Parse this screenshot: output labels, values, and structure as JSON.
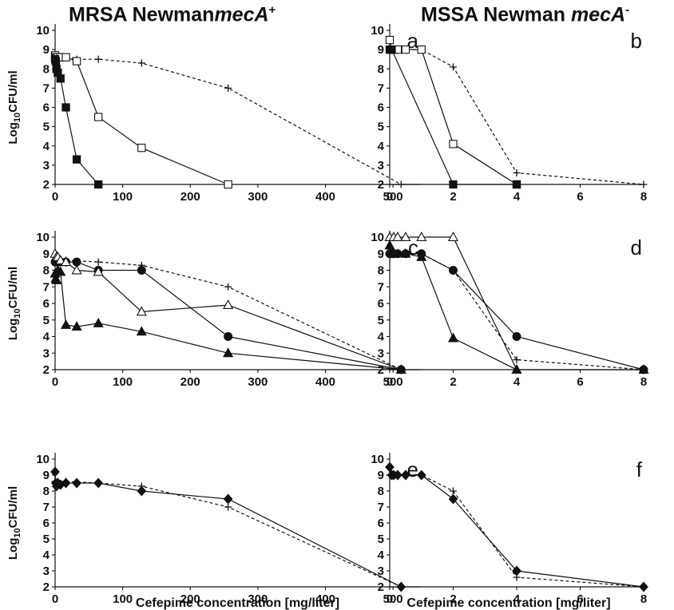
{
  "column_titles": [
    {
      "prefix": "MRSA Newman",
      "gene": "mecA",
      "sup": "+"
    },
    {
      "prefix": "MSSA Newman ",
      "gene": "mecA",
      "sup": "-"
    }
  ],
  "ylabel_main": "Log",
  "ylabel_sub": "10",
  "ylabel_tail": "CFU/ml",
  "xlabel": "Cefepime concentration [mg/liter]",
  "chart_data": [
    {
      "panel": "a",
      "type": "line",
      "xlim": [
        0,
        540
      ],
      "ylim": [
        2,
        10
      ],
      "xticks": [
        0,
        100,
        200,
        300,
        400,
        500
      ],
      "yticks": [
        2,
        3,
        4,
        5,
        6,
        7,
        8,
        9,
        10
      ],
      "series": [
        {
          "marker": "plus",
          "dashed": true,
          "x": [
            0,
            2,
            4,
            8,
            16,
            32,
            64,
            128,
            256,
            512
          ],
          "y": [
            8.6,
            8.6,
            8.6,
            8.6,
            8.6,
            8.5,
            8.5,
            8.3,
            7.0,
            2.0
          ]
        },
        {
          "marker": "square-open",
          "dashed": false,
          "x": [
            0,
            1,
            2,
            4,
            8,
            16,
            32,
            64,
            128,
            256
          ],
          "y": [
            8.7,
            8.6,
            8.6,
            8.6,
            8.6,
            8.6,
            8.4,
            5.5,
            3.9,
            2.0
          ]
        },
        {
          "marker": "square-filled",
          "dashed": false,
          "x": [
            0,
            1,
            2,
            4,
            8,
            16,
            32,
            64
          ],
          "y": [
            8.5,
            8.4,
            8.0,
            7.8,
            7.5,
            6.0,
            3.3,
            2.0
          ]
        }
      ]
    },
    {
      "panel": "b",
      "type": "line",
      "xlim": [
        0,
        8
      ],
      "ylim": [
        2,
        10
      ],
      "xticks": [
        0,
        2,
        4,
        6,
        8
      ],
      "yticks": [
        2,
        3,
        4,
        5,
        6,
        7,
        8,
        9,
        10
      ],
      "series": [
        {
          "marker": "plus",
          "dashed": true,
          "x": [
            0,
            0.125,
            0.25,
            0.5,
            1,
            2,
            4,
            8
          ],
          "y": [
            9.0,
            9.0,
            9.0,
            9.0,
            9.0,
            8.1,
            2.6,
            2.0
          ]
        },
        {
          "marker": "square-open",
          "dashed": false,
          "x": [
            0,
            0.0625,
            0.125,
            0.25,
            0.5,
            1,
            2,
            4
          ],
          "y": [
            9.5,
            9.0,
            9.0,
            9.0,
            9.0,
            9.0,
            4.1,
            2.0
          ]
        },
        {
          "marker": "square-filled",
          "dashed": false,
          "x": [
            0,
            0.0625,
            2,
            4
          ],
          "y": [
            9.0,
            9.0,
            2.0,
            2.0
          ]
        }
      ]
    },
    {
      "panel": "c",
      "type": "line",
      "xlim": [
        0,
        540
      ],
      "ylim": [
        2,
        10
      ],
      "xticks": [
        0,
        100,
        200,
        300,
        400,
        500
      ],
      "yticks": [
        2,
        3,
        4,
        5,
        6,
        7,
        8,
        9,
        10
      ],
      "series": [
        {
          "marker": "plus",
          "dashed": true,
          "x": [
            0,
            4,
            16,
            64,
            128,
            256,
            512
          ],
          "y": [
            8.6,
            8.6,
            8.6,
            8.5,
            8.3,
            7.0,
            2.0
          ]
        },
        {
          "marker": "circle-filled",
          "dashed": false,
          "x": [
            0,
            1,
            2,
            4,
            8,
            16,
            32,
            64,
            128,
            256,
            512
          ],
          "y": [
            8.5,
            8.5,
            8.6,
            8.5,
            8.5,
            8.5,
            8.5,
            8.0,
            8.0,
            4.0,
            2.0
          ]
        },
        {
          "marker": "triangle-open",
          "dashed": false,
          "x": [
            0,
            2,
            4,
            8,
            16,
            32,
            64,
            128,
            256,
            512
          ],
          "y": [
            9.0,
            8.8,
            8.8,
            8.6,
            8.5,
            8.0,
            7.9,
            5.5,
            5.9,
            2.0
          ]
        },
        {
          "marker": "triangle-filled",
          "dashed": false,
          "x": [
            0,
            1,
            2,
            4,
            8,
            16,
            32,
            64,
            128,
            256,
            512
          ],
          "y": [
            7.8,
            7.5,
            7.4,
            8.0,
            7.9,
            4.7,
            4.6,
            4.8,
            4.3,
            3.0,
            2.0
          ]
        }
      ]
    },
    {
      "panel": "d",
      "type": "line",
      "xlim": [
        0,
        8
      ],
      "ylim": [
        2,
        10
      ],
      "xticks": [
        0,
        2,
        4,
        6,
        8
      ],
      "yticks": [
        2,
        3,
        4,
        5,
        6,
        7,
        8,
        9,
        10
      ],
      "series": [
        {
          "marker": "plus",
          "dashed": true,
          "x": [
            0,
            0.5,
            1,
            2,
            4,
            8
          ],
          "y": [
            9.0,
            9.0,
            9.0,
            8.0,
            2.6,
            2.0
          ]
        },
        {
          "marker": "circle-filled",
          "dashed": false,
          "x": [
            0,
            0.0625,
            0.125,
            0.25,
            0.5,
            1,
            2,
            4,
            8
          ],
          "y": [
            9.0,
            9.0,
            9.0,
            9.0,
            9.0,
            9.0,
            8.0,
            4.0,
            2.0
          ]
        },
        {
          "marker": "triangle-open",
          "dashed": false,
          "x": [
            0,
            0.125,
            0.25,
            0.5,
            1,
            2,
            4
          ],
          "y": [
            10.0,
            10.0,
            10.0,
            10.0,
            10.0,
            10.0,
            2.0
          ]
        },
        {
          "marker": "triangle-filled",
          "dashed": false,
          "x": [
            0,
            0.0625,
            0.5,
            1,
            2,
            4,
            8
          ],
          "y": [
            9.5,
            9.2,
            9.0,
            8.8,
            3.9,
            2.0,
            2.0
          ]
        }
      ]
    },
    {
      "panel": "e",
      "type": "line",
      "xlim": [
        0,
        540
      ],
      "ylim": [
        2,
        10
      ],
      "xticks": [
        0,
        100,
        200,
        300,
        400,
        500
      ],
      "yticks": [
        2,
        3,
        4,
        5,
        6,
        7,
        8,
        9,
        10
      ],
      "series": [
        {
          "marker": "plus",
          "dashed": true,
          "x": [
            0,
            4,
            16,
            64,
            128,
            256,
            512
          ],
          "y": [
            8.6,
            8.6,
            8.6,
            8.5,
            8.3,
            7.0,
            2.0
          ]
        },
        {
          "marker": "diamond-filled",
          "dashed": false,
          "x": [
            0,
            1,
            2,
            4,
            8,
            16,
            32,
            64,
            128,
            256,
            512
          ],
          "y": [
            9.2,
            8.5,
            8.3,
            8.5,
            8.4,
            8.5,
            8.5,
            8.5,
            8.0,
            7.5,
            2.0
          ]
        }
      ]
    },
    {
      "panel": "f",
      "type": "line",
      "xlim": [
        0,
        8
      ],
      "ylim": [
        2,
        10
      ],
      "xticks": [
        0,
        2,
        4,
        6,
        8
      ],
      "yticks": [
        2,
        3,
        4,
        5,
        6,
        7,
        8,
        9,
        10
      ],
      "series": [
        {
          "marker": "plus",
          "dashed": true,
          "x": [
            0,
            1,
            2,
            4,
            8
          ],
          "y": [
            9.0,
            9.0,
            8.0,
            2.6,
            2.0
          ]
        },
        {
          "marker": "diamond-filled",
          "dashed": false,
          "x": [
            0,
            0.0625,
            0.125,
            0.25,
            0.5,
            1,
            2,
            4,
            8
          ],
          "y": [
            9.5,
            9.0,
            9.0,
            9.0,
            9.0,
            9.0,
            7.5,
            3.0,
            2.0
          ]
        }
      ]
    }
  ]
}
